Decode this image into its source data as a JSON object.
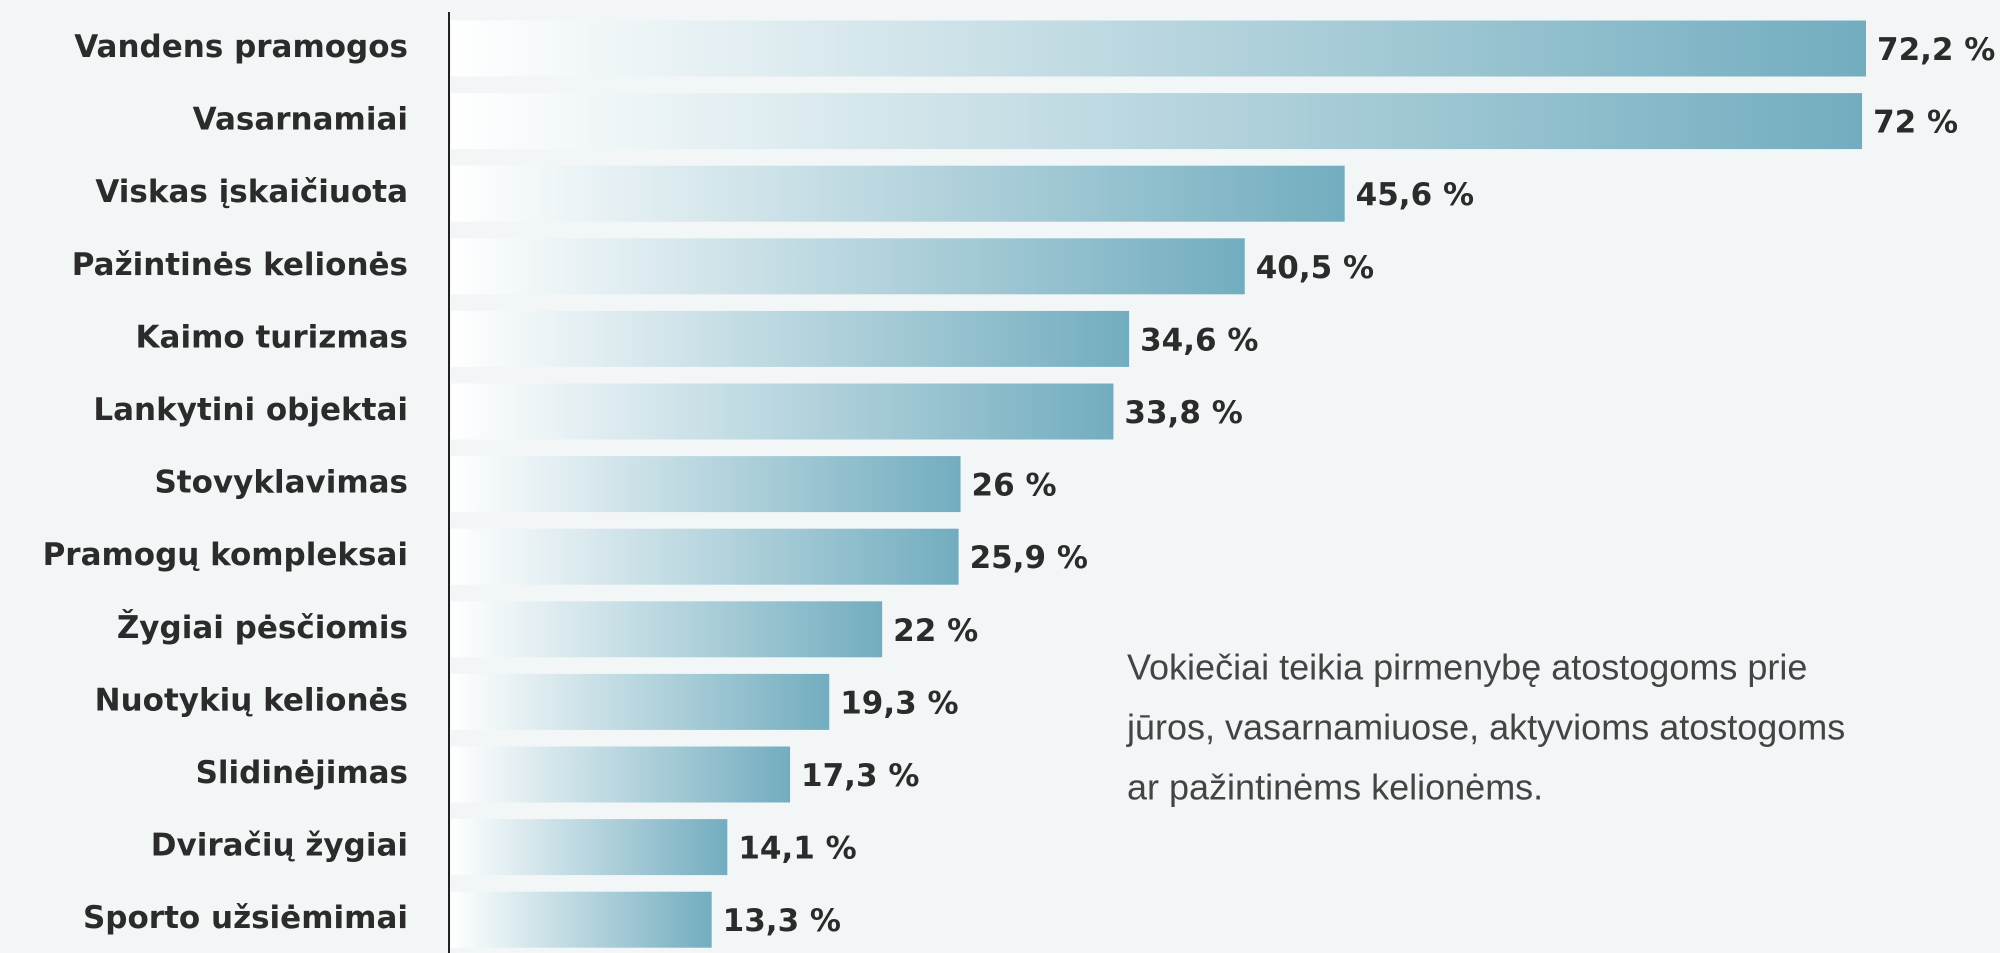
{
  "chart_data": {
    "type": "barh",
    "categories": [
      "Vandens pramogos",
      "Vasarnamiai",
      "Viskas įskaičiuota",
      "Pažintinės kelionės",
      "Kaimo turizmas",
      "Lankytini objektai",
      "Stovyklavimas",
      "Pramogų kompleksai",
      "Žygiai pėsčiomis",
      "Nuotykių kelionės",
      "Slidinėjimas",
      "Dviračių žygiai",
      "Sporto užsiėmimai"
    ],
    "values": [
      72.2,
      72,
      45.6,
      40.5,
      34.6,
      33.8,
      26,
      25.9,
      22,
      19.3,
      17.3,
      14.1,
      13.3
    ],
    "value_labels": [
      "72,2 %",
      "72 %",
      "45,6 %",
      "40,5 %",
      "34,6 %",
      "33,8 %",
      "26 %",
      "25,9 %",
      "22 %",
      "19,3 %",
      "17,3 %",
      "14,1 %",
      "13,3 %"
    ],
    "color": "#72adbf",
    "annotation": [
      "Vokiečiai teikia pirmenybę atostogoms prie",
      "jūros, vasarnamiuose, aktyvioms atostogoms",
      "ar pažintinėms kelionėms."
    ]
  }
}
